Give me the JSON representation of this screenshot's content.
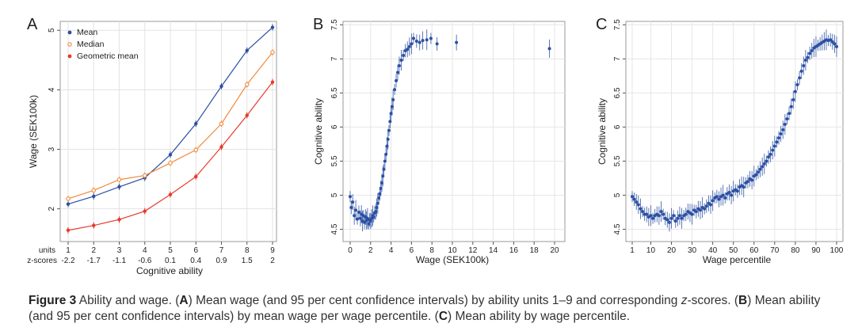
{
  "caption": {
    "fig": "Figure 3",
    "t1": " Ability and wage. (",
    "A": "A",
    "t2": ") Mean wage (and 95 per cent confidence intervals) by ability units 1–9 and corresponding ",
    "z": "z",
    "t3": "-scores. (",
    "B": "B",
    "t4": ") Mean ability (and 95 per cent confidence intervals) by mean wage per wage percentile. (",
    "C": "C",
    "t5": ") Mean ability by wage percentile."
  },
  "chart_data": [
    {
      "panel": "A",
      "type": "line",
      "xlabel": "Cognitive ability",
      "ylabel": "Wage (SEK100k)",
      "x_row_label_1": "units",
      "x_row_label_2": "z-scores",
      "categories": [
        "1",
        "2",
        "3",
        "4",
        "5",
        "6",
        "7",
        "8",
        "9"
      ],
      "z_scores": [
        "-2.2",
        "-1.7",
        "-1.1",
        "-0.6",
        "0.1",
        "0.4",
        "0.9",
        "1.5",
        "2"
      ],
      "yticks": [
        "2",
        "3",
        "4",
        "5"
      ],
      "ylim": [
        1.45,
        5.15
      ],
      "grid": true,
      "legend": "top-left",
      "series": [
        {
          "name": "Mean",
          "color": "#2b4fa3",
          "marker": "dot",
          "values": [
            2.08,
            2.21,
            2.37,
            2.52,
            2.91,
            3.43,
            4.06,
            4.66,
            5.05
          ]
        },
        {
          "name": "Median",
          "color": "#f08a3c",
          "marker": "circle",
          "values": [
            2.17,
            2.31,
            2.49,
            2.56,
            2.77,
            2.99,
            3.43,
            4.09,
            4.63
          ]
        },
        {
          "name": "Geometric mean",
          "color": "#e8392a",
          "marker": "dot",
          "values": [
            1.64,
            1.72,
            1.82,
            1.96,
            2.24,
            2.54,
            3.04,
            3.57,
            4.13
          ]
        }
      ]
    },
    {
      "panel": "B",
      "type": "scatter",
      "xlabel": "Wage (SEK100k)",
      "ylabel": "Cognitive ability",
      "xticks": [
        "0",
        "2",
        "4",
        "6",
        "8",
        "10",
        "12",
        "14",
        "16",
        "18",
        "20"
      ],
      "yticks": [
        "4.5",
        "5",
        "5.5",
        "6",
        "6.5",
        "7",
        "7.5"
      ],
      "xlim": [
        -0.3,
        20.3
      ],
      "ylim": [
        4.32,
        7.55
      ],
      "grid": true,
      "color": "#2b4fa3",
      "points": [
        [
          0.0,
          4.98
        ],
        [
          0.1,
          4.82
        ],
        [
          0.25,
          4.9
        ],
        [
          0.4,
          4.7
        ],
        [
          0.55,
          4.78
        ],
        [
          0.7,
          4.65
        ],
        [
          0.85,
          4.75
        ],
        [
          1.0,
          4.66
        ],
        [
          1.1,
          4.72
        ],
        [
          1.2,
          4.62
        ],
        [
          1.3,
          4.7
        ],
        [
          1.4,
          4.6
        ],
        [
          1.5,
          4.68
        ],
        [
          1.6,
          4.63
        ],
        [
          1.7,
          4.66
        ],
        [
          1.8,
          4.58
        ],
        [
          1.9,
          4.64
        ],
        [
          2.0,
          4.62
        ],
        [
          2.1,
          4.66
        ],
        [
          2.2,
          4.7
        ],
        [
          2.3,
          4.68
        ],
        [
          2.4,
          4.74
        ],
        [
          2.5,
          4.76
        ],
        [
          2.6,
          4.82
        ],
        [
          2.7,
          4.88
        ],
        [
          2.8,
          4.96
        ],
        [
          2.9,
          5.02
        ],
        [
          3.0,
          5.1
        ],
        [
          3.1,
          5.18
        ],
        [
          3.2,
          5.28
        ],
        [
          3.3,
          5.38
        ],
        [
          3.4,
          5.5
        ],
        [
          3.5,
          5.6
        ],
        [
          3.6,
          5.72
        ],
        [
          3.7,
          5.82
        ],
        [
          3.8,
          5.95
        ],
        [
          3.9,
          6.08
        ],
        [
          4.0,
          6.2
        ],
        [
          4.1,
          6.3
        ],
        [
          4.2,
          6.4
        ],
        [
          4.35,
          6.55
        ],
        [
          4.5,
          6.68
        ],
        [
          4.65,
          6.8
        ],
        [
          4.8,
          6.9
        ],
        [
          5.0,
          6.98
        ],
        [
          5.2,
          7.05
        ],
        [
          5.4,
          7.12
        ],
        [
          5.6,
          7.14
        ],
        [
          5.8,
          7.18
        ],
        [
          6.0,
          7.22
        ],
        [
          6.2,
          7.3
        ],
        [
          6.5,
          7.26
        ],
        [
          6.8,
          7.24
        ],
        [
          7.1,
          7.27
        ],
        [
          7.5,
          7.28
        ],
        [
          7.9,
          7.3
        ],
        [
          8.5,
          7.22
        ],
        [
          10.4,
          7.24
        ],
        [
          19.5,
          7.15
        ]
      ]
    },
    {
      "panel": "C",
      "type": "scatter",
      "xlabel": "Wage percentile",
      "ylabel": "Cognitive ability",
      "xticks": [
        "1",
        "10",
        "20",
        "30",
        "40",
        "50",
        "60",
        "70",
        "80",
        "90",
        "100"
      ],
      "yticks": [
        "4.5",
        "5",
        "5.5",
        "6",
        "6.5",
        "7",
        "7.5"
      ],
      "xlim": [
        -1.5,
        102.5
      ],
      "ylim": [
        4.32,
        7.55
      ],
      "grid": true,
      "color": "#2b4fa3",
      "points": [
        [
          1,
          4.98
        ],
        [
          2,
          4.94
        ],
        [
          3,
          4.9
        ],
        [
          4,
          4.86
        ],
        [
          5,
          4.8
        ],
        [
          6,
          4.76
        ],
        [
          7,
          4.72
        ],
        [
          8,
          4.72
        ],
        [
          9,
          4.68
        ],
        [
          10,
          4.7
        ],
        [
          11,
          4.66
        ],
        [
          12,
          4.7
        ],
        [
          13,
          4.72
        ],
        [
          14,
          4.7
        ],
        [
          15,
          4.76
        ],
        [
          16,
          4.72
        ],
        [
          17,
          4.66
        ],
        [
          18,
          4.64
        ],
        [
          19,
          4.6
        ],
        [
          20,
          4.66
        ],
        [
          21,
          4.7
        ],
        [
          22,
          4.62
        ],
        [
          23,
          4.66
        ],
        [
          24,
          4.7
        ],
        [
          25,
          4.66
        ],
        [
          26,
          4.7
        ],
        [
          27,
          4.72
        ],
        [
          28,
          4.76
        ],
        [
          29,
          4.74
        ],
        [
          30,
          4.72
        ],
        [
          31,
          4.78
        ],
        [
          32,
          4.76
        ],
        [
          33,
          4.8
        ],
        [
          34,
          4.78
        ],
        [
          35,
          4.82
        ],
        [
          36,
          4.8
        ],
        [
          37,
          4.84
        ],
        [
          38,
          4.88
        ],
        [
          39,
          4.86
        ],
        [
          40,
          4.92
        ],
        [
          41,
          4.96
        ],
        [
          42,
          4.98
        ],
        [
          43,
          4.94
        ],
        [
          44,
          4.98
        ],
        [
          45,
          5.0
        ],
        [
          46,
          4.96
        ],
        [
          47,
          5.02
        ],
        [
          48,
          5.04
        ],
        [
          49,
          5.0
        ],
        [
          50,
          5.06
        ],
        [
          51,
          5.08
        ],
        [
          52,
          5.06
        ],
        [
          53,
          5.12
        ],
        [
          54,
          5.14
        ],
        [
          55,
          5.12
        ],
        [
          56,
          5.18
        ],
        [
          57,
          5.2
        ],
        [
          58,
          5.24
        ],
        [
          59,
          5.22
        ],
        [
          60,
          5.28
        ],
        [
          61,
          5.3
        ],
        [
          62,
          5.34
        ],
        [
          63,
          5.38
        ],
        [
          64,
          5.42
        ],
        [
          65,
          5.46
        ],
        [
          66,
          5.5
        ],
        [
          67,
          5.56
        ],
        [
          68,
          5.6
        ],
        [
          69,
          5.66
        ],
        [
          70,
          5.72
        ],
        [
          71,
          5.78
        ],
        [
          72,
          5.84
        ],
        [
          73,
          5.9
        ],
        [
          74,
          5.96
        ],
        [
          75,
          6.04
        ],
        [
          76,
          6.12
        ],
        [
          77,
          6.2
        ],
        [
          78,
          6.3
        ],
        [
          79,
          6.4
        ],
        [
          80,
          6.52
        ],
        [
          81,
          6.62
        ],
        [
          82,
          6.72
        ],
        [
          83,
          6.82
        ],
        [
          84,
          6.9
        ],
        [
          85,
          6.98
        ],
        [
          86,
          7.02
        ],
        [
          87,
          7.08
        ],
        [
          88,
          7.12
        ],
        [
          89,
          7.16
        ],
        [
          90,
          7.18
        ],
        [
          91,
          7.2
        ],
        [
          92,
          7.22
        ],
        [
          93,
          7.24
        ],
        [
          94,
          7.26
        ],
        [
          95,
          7.28
        ],
        [
          96,
          7.27
        ],
        [
          97,
          7.28
        ],
        [
          98,
          7.25
        ],
        [
          99,
          7.22
        ],
        [
          100,
          7.18
        ]
      ]
    }
  ]
}
